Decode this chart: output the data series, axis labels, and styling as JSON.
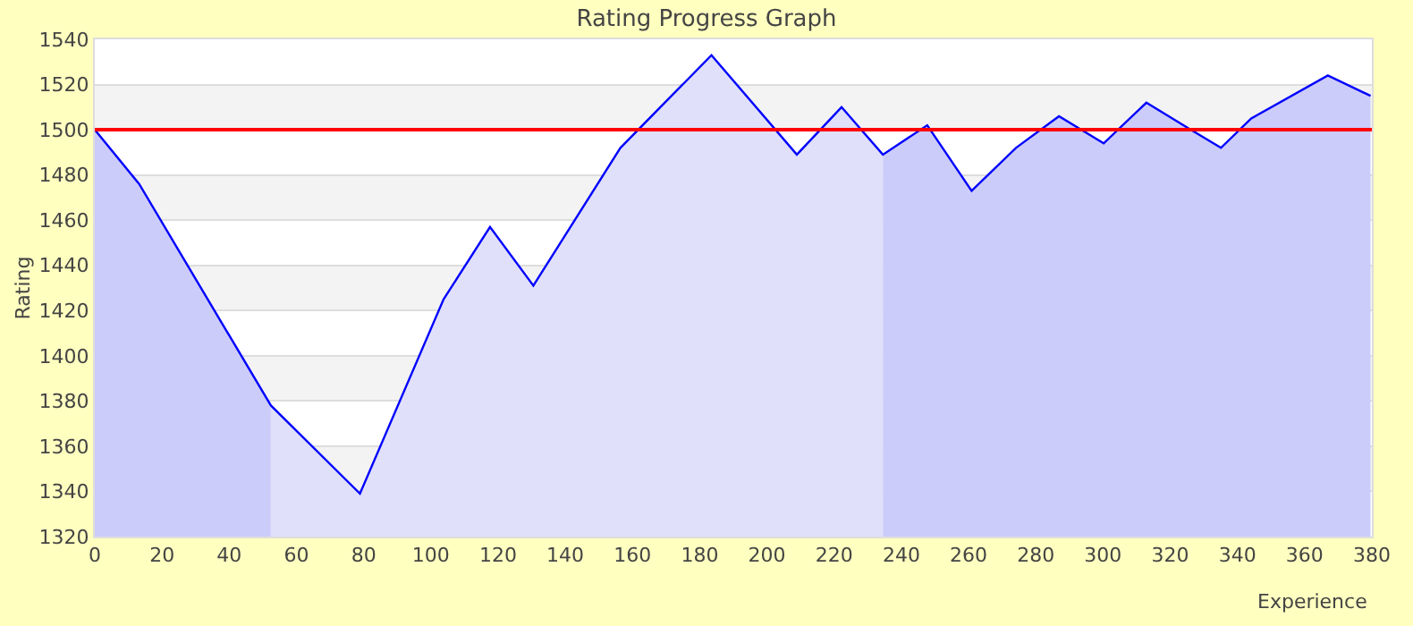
{
  "chart_data": {
    "type": "area",
    "title": "Rating Progress Graph",
    "xlabel": "Experience",
    "ylabel": "Rating",
    "series": [
      {
        "color": "#ccccfa",
        "x": [
          0,
          13.2,
          52.4
        ],
        "values": [
          1500,
          1476,
          1378
        ]
      },
      {
        "color": "#e0e0fb",
        "x": [
          52.4,
          78.9,
          103.8,
          117.6,
          130.5,
          156.4,
          183.5,
          208.9,
          222.2,
          234.5
        ],
        "values": [
          1378,
          1339,
          1425,
          1457,
          1431,
          1492,
          1533,
          1489,
          1510,
          1489
        ]
      },
      {
        "color": "#ccccfa",
        "x": [
          234.5,
          247.7,
          260.9,
          274.1,
          286.9,
          300.2,
          312.9,
          326.1,
          335.1,
          344.1,
          366.9,
          379.6
        ],
        "values": [
          1489,
          1502,
          1473,
          1492,
          1506,
          1494,
          1512,
          1500,
          1492,
          1505,
          1524,
          1515
        ]
      },
      {
        "type": "line",
        "color": "#0000ff",
        "x": [
          0,
          13.2,
          52.4,
          78.9,
          103.8,
          117.6,
          130.5,
          156.4,
          183.5,
          208.9,
          222.2,
          234.5,
          247.7,
          260.9,
          274.1,
          286.9,
          300.2,
          312.9,
          326.1,
          335.1,
          344.1,
          366.9,
          379.6
        ],
        "values": [
          1500,
          1476,
          1378,
          1339,
          1425,
          1457,
          1431,
          1492,
          1533,
          1489,
          1510,
          1489,
          1502,
          1473,
          1492,
          1506,
          1494,
          1512,
          1500,
          1492,
          1505,
          1524,
          1515
        ]
      }
    ],
    "ref_lines": [
      {
        "axis": "y",
        "value": 1500,
        "color": "#ff0000"
      }
    ],
    "xlim": [
      0,
      380
    ],
    "xticks": [
      0,
      20,
      40,
      60,
      80,
      100,
      120,
      140,
      160,
      180,
      200,
      220,
      240,
      260,
      280,
      300,
      320,
      340,
      360,
      380
    ],
    "ylim": [
      1320,
      1540
    ],
    "yticks": [
      1320,
      1340,
      1360,
      1380,
      1400,
      1420,
      1440,
      1460,
      1480,
      1500,
      1520,
      1540
    ],
    "grid": "y",
    "marker": "none",
    "line_style": "solid"
  }
}
